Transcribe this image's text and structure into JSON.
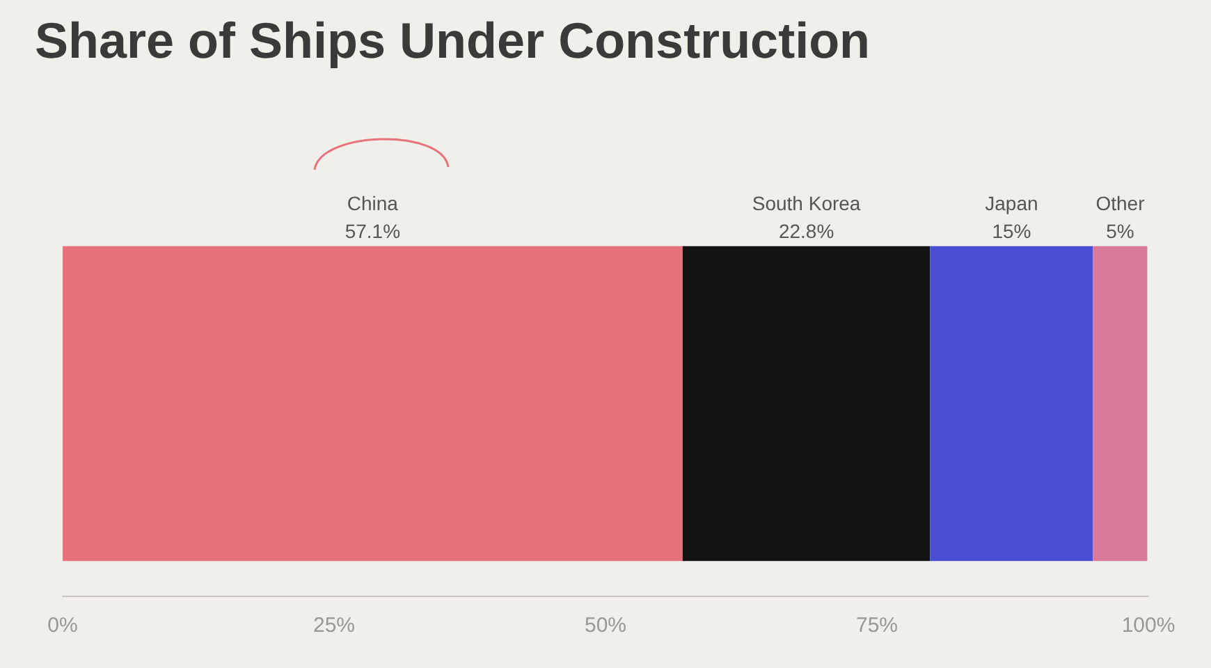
{
  "chart_data": {
    "type": "bar",
    "title": "Share of Ships Under Construction",
    "orientation": "horizontal",
    "stacked": true,
    "categories": [
      null
    ],
    "series": [
      {
        "name": "China",
        "color": "#e8727c",
        "values": [
          57.1
        ],
        "value_labels": [
          "57.1%"
        ]
      },
      {
        "name": "South Korea",
        "color": "#121212",
        "values": [
          22.8
        ],
        "value_labels": [
          "22.8%"
        ]
      },
      {
        "name": "Japan",
        "color": "#4a4ed2",
        "values": [
          15
        ],
        "value_labels": [
          "15%"
        ]
      },
      {
        "name": "Other",
        "color": "#d97b9c",
        "values": [
          5
        ],
        "value_labels": [
          "5%"
        ]
      }
    ],
    "xlim": [
      0,
      100
    ],
    "xticks": [
      {
        "value": 0,
        "label": "0%"
      },
      {
        "value": 25,
        "label": "25%"
      },
      {
        "value": 50,
        "label": "50%"
      },
      {
        "value": 75,
        "label": "75%"
      },
      {
        "value": 100,
        "label": "100%"
      }
    ],
    "grid": false,
    "legend": false
  }
}
